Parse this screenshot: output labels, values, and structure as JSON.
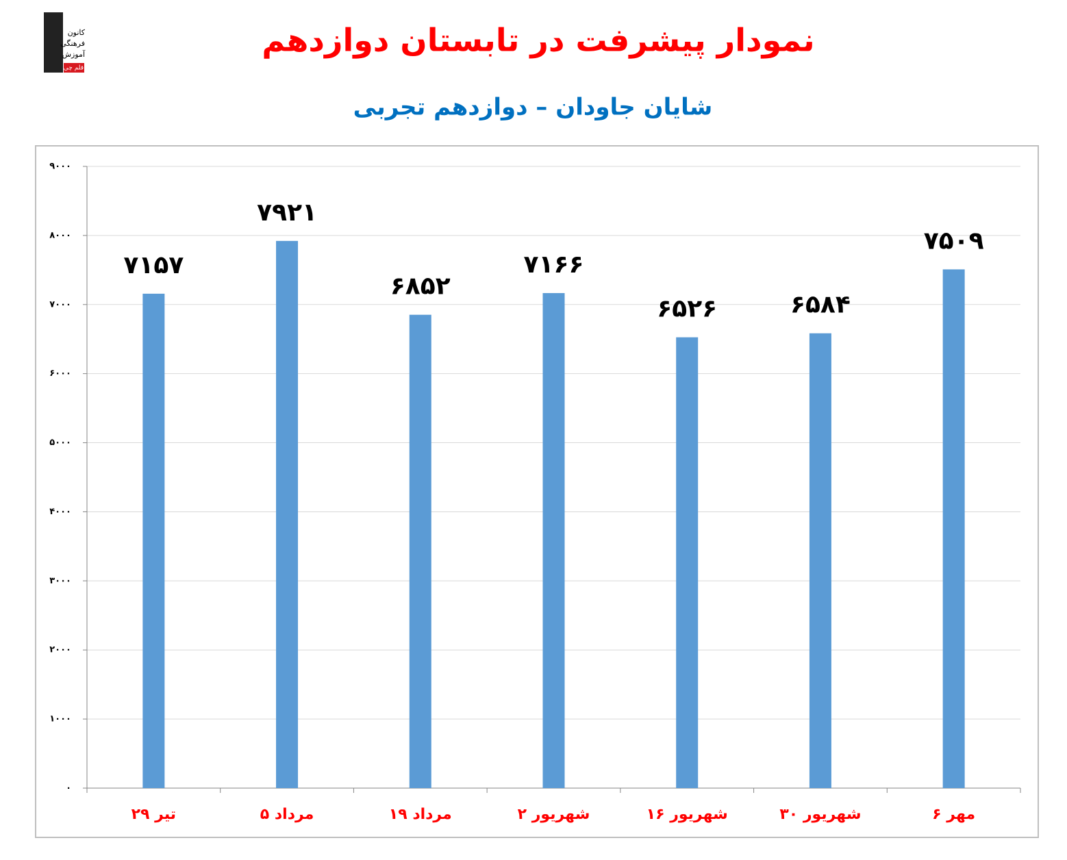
{
  "logo": {
    "lines": [
      "کانون",
      "فرهنگی",
      "آموزش",
      "قلم چی"
    ]
  },
  "chart_data": {
    "type": "bar",
    "title": "نمودار پیشرفت در تابستان دوازدهم",
    "subtitle": "شایان جاودان – دوازدهم تجربی",
    "categories": [
      "۲۹ تیر",
      "۵ مرداد",
      "۱۹ مرداد",
      "۲ شهریور",
      "۱۶ شهریور",
      "۳۰ شهریور",
      "۶ مهر"
    ],
    "values": [
      7157,
      7921,
      6852,
      7166,
      6526,
      6584,
      7509
    ],
    "value_labels": [
      "۷۱۵۷",
      "۷۹۲۱",
      "۶۸۵۲",
      "۷۱۶۶",
      "۶۵۲۶",
      "۶۵۸۴",
      "۷۵۰۹"
    ],
    "color": "#5b9bd5",
    "ylim": [
      0,
      9000
    ],
    "yticks": [
      {
        "value": 0,
        "label": "۰"
      },
      {
        "value": 1000,
        "label": "۱۰۰۰"
      },
      {
        "value": 2000,
        "label": "۲۰۰۰"
      },
      {
        "value": 3000,
        "label": "۳۰۰۰"
      },
      {
        "value": 4000,
        "label": "۴۰۰۰"
      },
      {
        "value": 5000,
        "label": "۵۰۰۰"
      },
      {
        "value": 6000,
        "label": "۶۰۰۰"
      },
      {
        "value": 7000,
        "label": "۷۰۰۰"
      },
      {
        "value": 8000,
        "label": "۸۰۰۰"
      },
      {
        "value": 9000,
        "label": "۹۰۰۰"
      }
    ],
    "grid": true
  }
}
